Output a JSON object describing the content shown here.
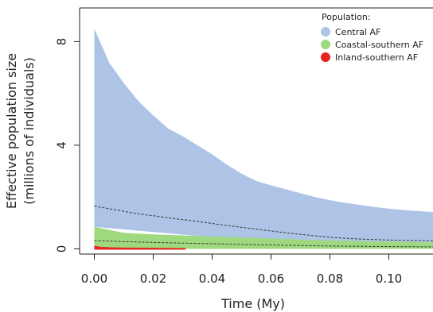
{
  "chart_data": {
    "type": "area",
    "title": "",
    "xlabel": "Time (My)",
    "ylabel_line1": "Effective population size",
    "ylabel_line2": "(millions of individuals)",
    "xlim": [
      -0.005,
      0.115
    ],
    "ylim": [
      -0.2,
      9.3
    ],
    "x_ticks": [
      0.0,
      0.02,
      0.04,
      0.06,
      0.08,
      0.1
    ],
    "x_tick_labels": [
      "0.00",
      "0.02",
      "0.04",
      "0.06",
      "0.08",
      "0.10"
    ],
    "y_ticks": [
      0,
      4,
      8
    ],
    "y_tick_labels": [
      "0",
      "4",
      "8"
    ],
    "legend": {
      "title": "Population:",
      "position": "top-right",
      "entries": [
        {
          "label": "Central AF",
          "color": "#aec4e6"
        },
        {
          "label": "Coastal-southern AF",
          "color": "#9ed97f"
        },
        {
          "label": "Inland-southern AF",
          "color": "#e8231f"
        }
      ]
    },
    "series": [
      {
        "name": "Central AF",
        "color": "#aec4e6",
        "x": [
          0.0,
          0.005,
          0.01,
          0.015,
          0.02,
          0.025,
          0.03,
          0.035,
          0.04,
          0.045,
          0.05,
          0.055,
          0.06,
          0.065,
          0.07,
          0.075,
          0.08,
          0.085,
          0.09,
          0.095,
          0.1,
          0.105,
          0.11,
          0.115
        ],
        "upper": [
          8.5,
          7.2,
          6.4,
          5.7,
          5.15,
          4.65,
          4.35,
          4.0,
          3.65,
          3.25,
          2.9,
          2.62,
          2.45,
          2.3,
          2.15,
          2.0,
          1.88,
          1.78,
          1.7,
          1.62,
          1.55,
          1.5,
          1.46,
          1.42
        ],
        "lower": [
          0.85,
          0.8,
          0.75,
          0.7,
          0.65,
          0.6,
          0.55,
          0.5,
          0.46,
          0.42,
          0.38,
          0.35,
          0.32,
          0.3,
          0.28,
          0.27,
          0.26,
          0.25,
          0.25,
          0.25,
          0.25,
          0.25,
          0.25,
          0.25
        ],
        "median": [
          1.65,
          1.55,
          1.45,
          1.35,
          1.28,
          1.2,
          1.13,
          1.06,
          0.98,
          0.9,
          0.83,
          0.76,
          0.69,
          0.62,
          0.56,
          0.5,
          0.45,
          0.41,
          0.38,
          0.36,
          0.34,
          0.33,
          0.32,
          0.31
        ]
      },
      {
        "name": "Coastal-southern AF",
        "color": "#9ed97f",
        "x": [
          0.0,
          0.01,
          0.02,
          0.03,
          0.04,
          0.05,
          0.06,
          0.07,
          0.08,
          0.09,
          0.1,
          0.11,
          0.115
        ],
        "upper": [
          0.85,
          0.62,
          0.56,
          0.52,
          0.48,
          0.44,
          0.4,
          0.36,
          0.33,
          0.3,
          0.28,
          0.26,
          0.25
        ],
        "lower": [
          0.0,
          0.0,
          0.0,
          0.0,
          0.0,
          0.0,
          0.0,
          0.0,
          0.0,
          0.0,
          0.0,
          0.0,
          0.0
        ],
        "median": [
          0.32,
          0.28,
          0.25,
          0.22,
          0.2,
          0.17,
          0.15,
          0.13,
          0.11,
          0.1,
          0.09,
          0.08,
          0.08
        ]
      },
      {
        "name": "Inland-southern AF",
        "color": "#e8231f",
        "x": [
          0.0,
          0.002,
          0.005,
          0.01,
          0.015,
          0.02,
          0.025,
          0.03,
          0.031
        ],
        "upper": [
          0.12,
          0.08,
          0.06,
          0.05,
          0.045,
          0.04,
          0.035,
          0.03,
          0.03
        ],
        "lower": [
          -0.03,
          -0.03,
          -0.03,
          -0.03,
          -0.03,
          -0.03,
          -0.03,
          -0.03,
          -0.03
        ]
      }
    ]
  }
}
